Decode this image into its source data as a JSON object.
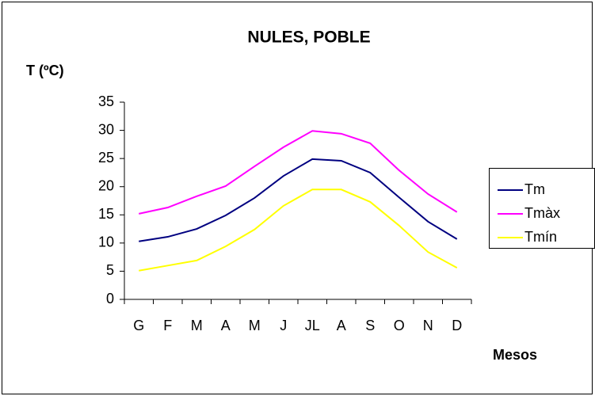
{
  "chart_data": {
    "type": "line",
    "title": "NULES, POBLE",
    "y_label": "T (ºC)",
    "x_label": "Mesos",
    "categories": [
      "G",
      "F",
      "M",
      "A",
      "M",
      "J",
      "JL",
      "A",
      "S",
      "O",
      "N",
      "D"
    ],
    "series": [
      {
        "name": "Tm",
        "color": "#000080",
        "values": [
          10.3,
          11.1,
          12.5,
          14.9,
          18,
          21.9,
          24.9,
          24.6,
          22.5,
          18.1,
          13.8,
          10.7
        ]
      },
      {
        "name": "Tmàx",
        "color": "#ff00ff",
        "values": [
          15.2,
          16.3,
          18.3,
          20.1,
          23.6,
          27,
          29.9,
          29.4,
          27.7,
          22.9,
          18.7,
          15.5
        ]
      },
      {
        "name": "Tmín",
        "color": "#ffff00",
        "values": [
          5.1,
          6,
          6.9,
          9.4,
          12.4,
          16.6,
          19.5,
          19.5,
          17.3,
          13.1,
          8.4,
          5.6
        ]
      }
    ],
    "ylim": [
      0,
      35
    ],
    "yticks": [
      0,
      5,
      10,
      15,
      20,
      25,
      30,
      35
    ],
    "grid": false,
    "legend": "right"
  }
}
